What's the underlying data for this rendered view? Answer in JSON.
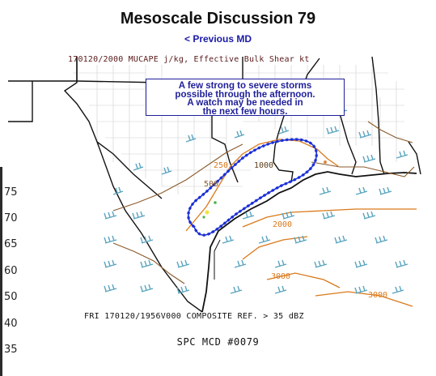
{
  "title": "Mesoscale Discussion 79",
  "previous_link": "< Previous MD",
  "map": {
    "header": "170120/2000 MUCAPE j/kg, Effective Bulk Shear kt",
    "annotation_lines": [
      "A few strong to severe storms",
      "possible through the afternoon.",
      "A watch may be needed in",
      "the next few hours."
    ],
    "contour_labels": [
      "250",
      "500",
      "1000",
      "2000",
      "3000",
      "3000"
    ],
    "footer": "FRI 170120/1956V000  COMPOSITE REF. > 35 dBZ",
    "mcd_label": "SPC MCD #0079",
    "legend_labels": [
      "75",
      "70",
      "65",
      "60",
      "50",
      "40",
      "35"
    ],
    "colors": {
      "outline": "#1a2fd6",
      "annotation": "#1f1f9a",
      "cape_contour": "#d9791a",
      "shear_barb": "#5aa5bf",
      "state_border": "#111111",
      "county_line": "#c8c8c8"
    }
  }
}
